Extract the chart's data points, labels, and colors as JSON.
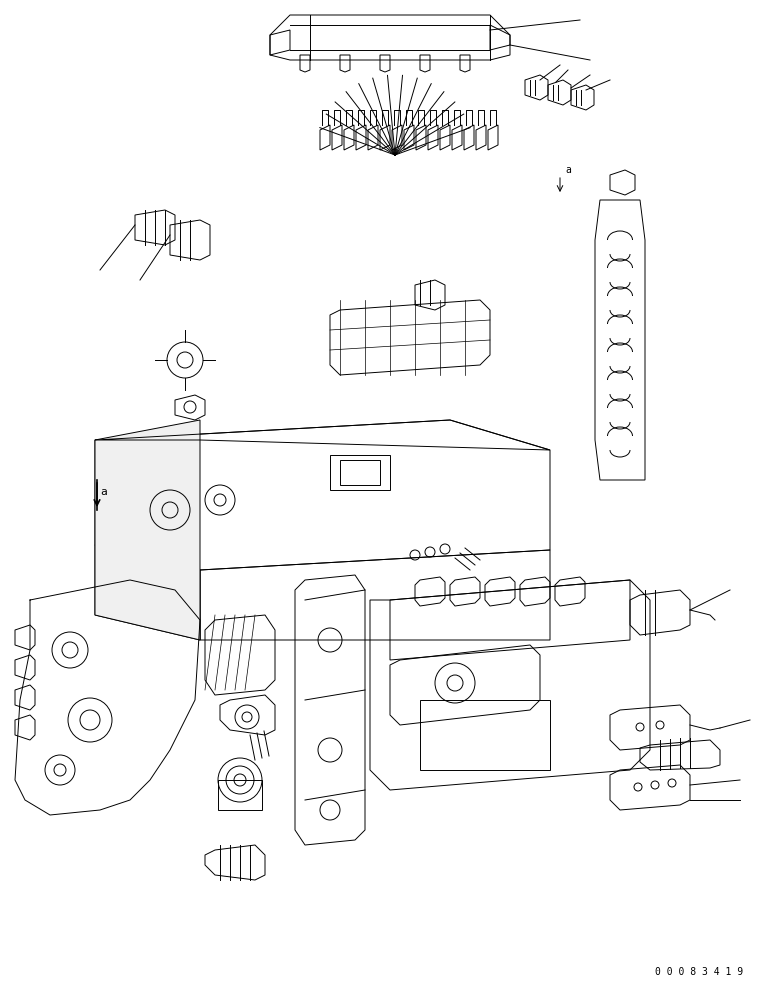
{
  "bg_color": "#ffffff",
  "line_color": "#000000",
  "line_width": 0.7,
  "part_number": "00083419",
  "fig_width": 7.74,
  "fig_height": 9.88,
  "dpi": 100
}
